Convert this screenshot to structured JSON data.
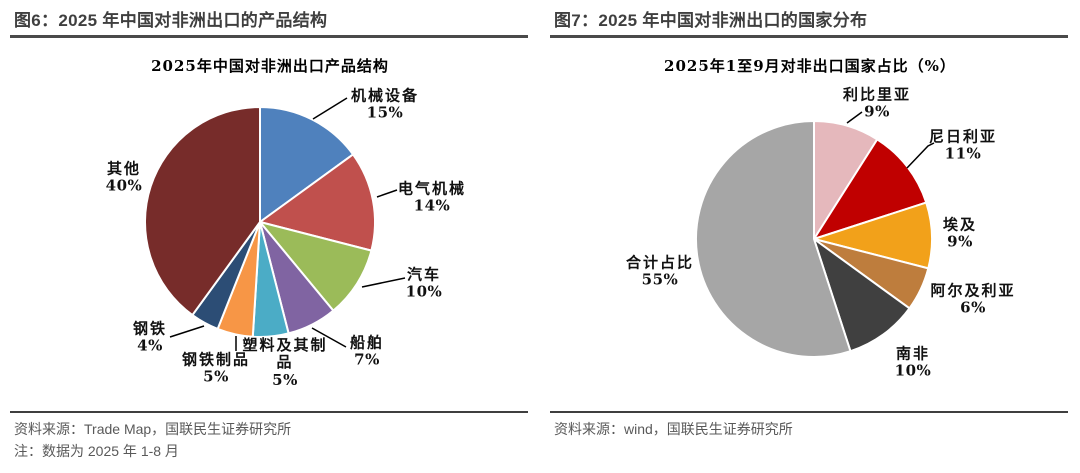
{
  "panels": [
    {
      "header": "图6：2025 年中国对非洲出口的产品结构",
      "source": "资料来源：Trade Map，国联民生证券研究所",
      "note": "注：数据为 2025 年 1-8 月"
    },
    {
      "header": "图7：2025 年中国对非洲出口的国家分布",
      "source": "资料来源：wind，国联民生证券研究所",
      "note": ""
    }
  ],
  "chart_data": [
    {
      "type": "pie",
      "title": "2025年中国对非洲出口产品结构",
      "units": "%",
      "start_angle_deg": 0,
      "direction": "clockwise",
      "legend_position": "outside-labels",
      "categories": [
        "机械设备",
        "电气机械",
        "汽车",
        "船舶",
        "塑料及其制品",
        "钢铁制品",
        "钢铁",
        "其他"
      ],
      "values": [
        15,
        14,
        10,
        7,
        5,
        5,
        4,
        40
      ],
      "colors": [
        "#4F81BD",
        "#C0504D",
        "#9BBB59",
        "#8064A2",
        "#4BACC6",
        "#F79646",
        "#2C4D75",
        "#772C2A"
      ],
      "slices": [
        {
          "label": "机械设备",
          "value": 15,
          "color": "#4F81BD"
        },
        {
          "label": "电气机械",
          "value": 14,
          "color": "#C0504D"
        },
        {
          "label": "汽车",
          "value": 10,
          "color": "#9BBB59"
        },
        {
          "label": "船舶",
          "value": 7,
          "color": "#8064A2"
        },
        {
          "label": "塑料及其制品",
          "value": 5,
          "color": "#4BACC6"
        },
        {
          "label": "钢铁制品",
          "value": 5,
          "color": "#F79646"
        },
        {
          "label": "钢铁",
          "value": 4,
          "color": "#2C4D75"
        },
        {
          "label": "其他",
          "value": 40,
          "color": "#772C2A"
        }
      ]
    },
    {
      "type": "pie",
      "title": "2025年1至9月对非出口国家占比（%）",
      "units": "%",
      "start_angle_deg": 0,
      "direction": "clockwise",
      "legend_position": "outside-labels",
      "categories": [
        "利比里亚",
        "尼日利亚",
        "埃及",
        "阿尔及利亚",
        "南非",
        "合计占比"
      ],
      "values": [
        9,
        11,
        9,
        6,
        10,
        55
      ],
      "colors": [
        "#E5B8BC",
        "#C00000",
        "#F2A11A",
        "#BE7D3D",
        "#404040",
        "#A6A6A6"
      ],
      "slices": [
        {
          "label": "利比里亚",
          "value": 9,
          "color": "#E5B8BC"
        },
        {
          "label": "尼日利亚",
          "value": 11,
          "color": "#C00000"
        },
        {
          "label": "埃及",
          "value": 9,
          "color": "#F2A11A"
        },
        {
          "label": "阿尔及利亚",
          "value": 6,
          "color": "#BE7D3D"
        },
        {
          "label": "南非",
          "value": 10,
          "color": "#404040"
        },
        {
          "label": "合计占比",
          "value": 55,
          "color": "#A6A6A6"
        }
      ]
    }
  ]
}
